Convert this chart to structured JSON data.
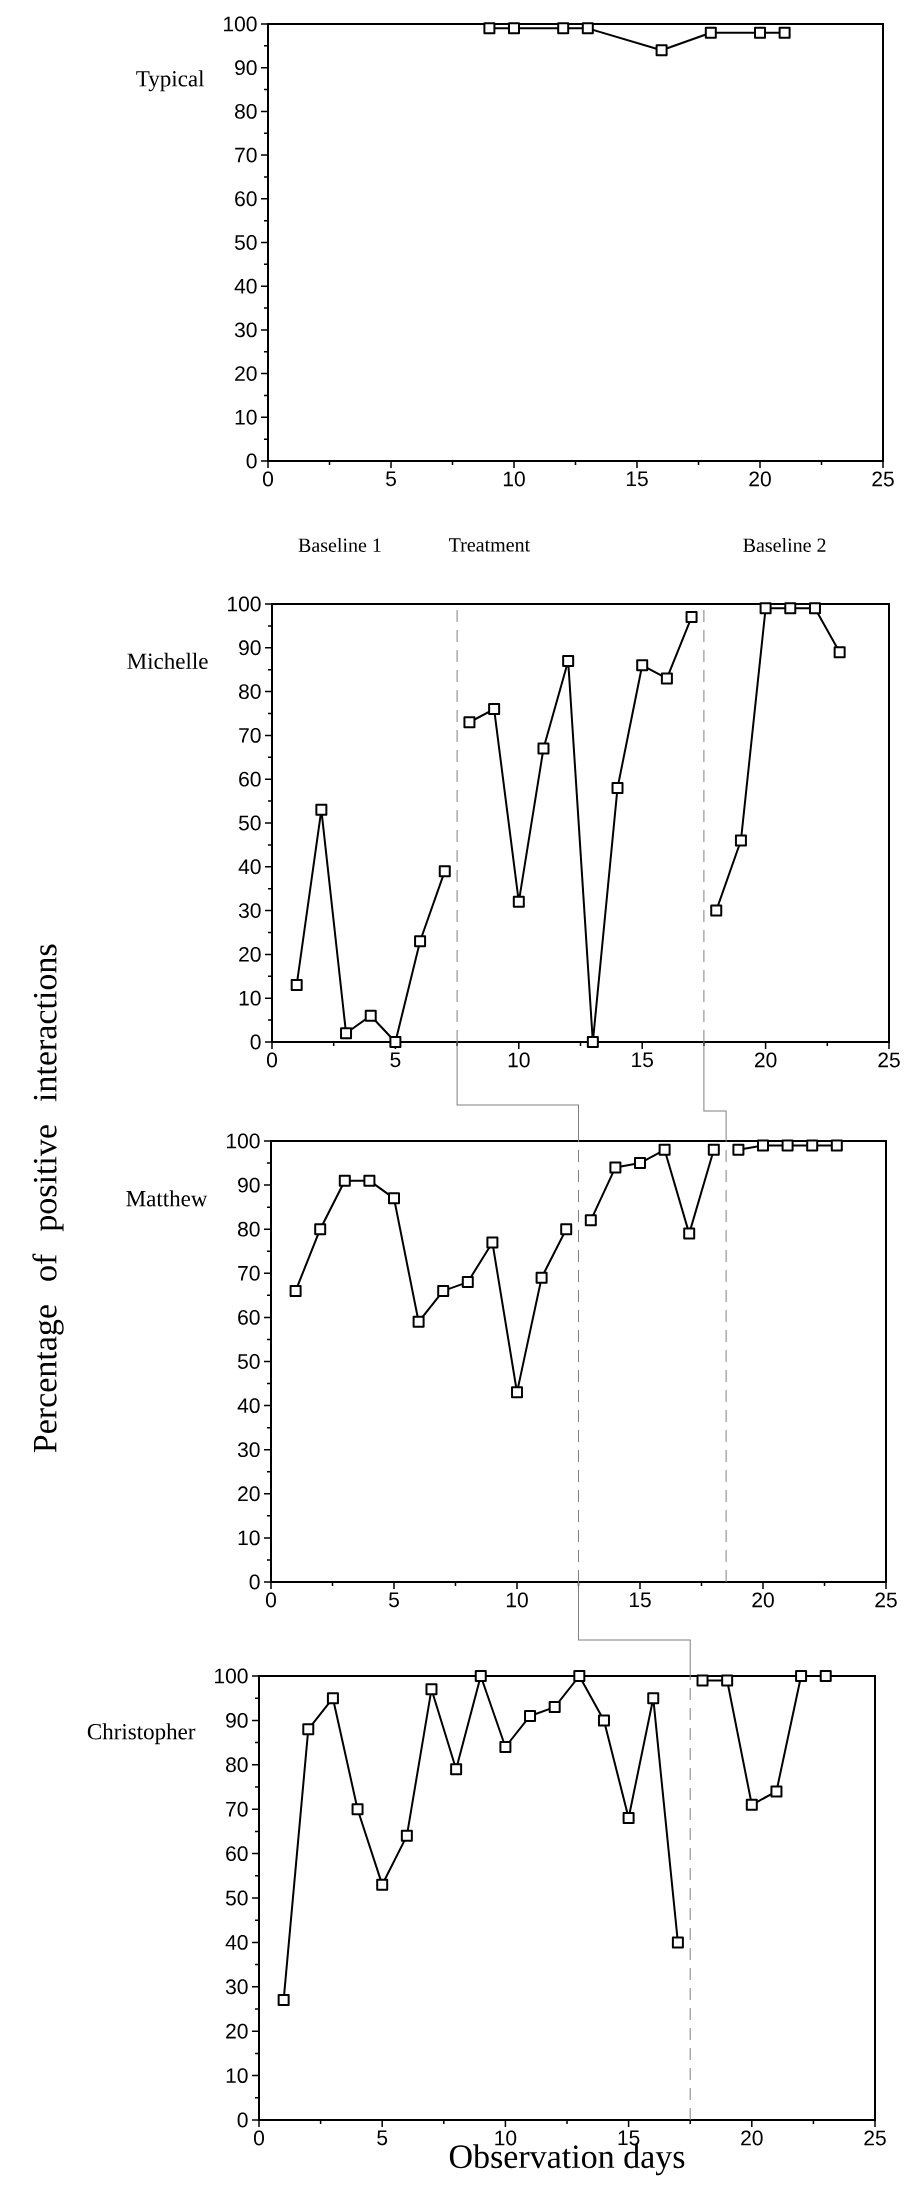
{
  "chart_data": [
    {
      "type": "line",
      "title": "Typical",
      "xlim": [
        0,
        25
      ],
      "ylim": [
        0,
        100
      ],
      "xticks": [
        0,
        5,
        10,
        15,
        20,
        25
      ],
      "yticks": [
        0,
        10,
        20,
        30,
        40,
        50,
        60,
        70,
        80,
        90,
        100
      ],
      "marker": "square",
      "line_style": "solid",
      "annotations": [
        "Baseline 1",
        "Treatment",
        "Baseline 2"
      ],
      "series": [
        {
          "color": "#000000",
          "x": [
            9,
            10,
            12,
            13,
            16,
            18,
            20,
            21
          ],
          "values": [
            99,
            99,
            99,
            99,
            94,
            98,
            98,
            98
          ]
        }
      ]
    },
    {
      "type": "line",
      "title": "Michelle",
      "xlim": [
        0,
        25
      ],
      "ylim": [
        0,
        100
      ],
      "xticks": [
        0,
        5,
        10,
        15,
        20,
        25
      ],
      "yticks": [
        0,
        10,
        20,
        30,
        40,
        50,
        60,
        70,
        80,
        90,
        100
      ],
      "marker": "square",
      "line_style": "solid",
      "ref_lines": [
        {
          "axis": "x",
          "value": 7.5,
          "color": "#808080",
          "line_style": "dashed"
        },
        {
          "axis": "x",
          "value": 17.5,
          "color": "#808080",
          "line_style": "dashed"
        }
      ],
      "series": [
        {
          "color": "#000000",
          "x": [
            1,
            2,
            3,
            4,
            5,
            6,
            7
          ],
          "values": [
            13,
            53,
            2,
            6,
            0,
            23,
            39
          ]
        },
        {
          "color": "#000000",
          "x": [
            8,
            9,
            10,
            11,
            12,
            13,
            14,
            15,
            16,
            17
          ],
          "values": [
            73,
            76,
            32,
            67,
            87,
            0,
            58,
            86,
            83,
            97
          ]
        },
        {
          "color": "#000000",
          "x": [
            18,
            19,
            20,
            21,
            22,
            23
          ],
          "values": [
            30,
            46,
            99,
            99,
            99,
            89
          ]
        }
      ]
    },
    {
      "type": "line",
      "title": "Matthew",
      "ylabel": "Percentage of positive interactions",
      "xlim": [
        0,
        25
      ],
      "ylim": [
        0,
        100
      ],
      "xticks": [
        0,
        5,
        10,
        15,
        20,
        25
      ],
      "yticks": [
        0,
        10,
        20,
        30,
        40,
        50,
        60,
        70,
        80,
        90,
        100
      ],
      "marker": "square",
      "line_style": "solid",
      "ref_lines": [
        {
          "axis": "x",
          "value": 12.5,
          "color": "#808080",
          "line_style": "dashed"
        },
        {
          "axis": "x",
          "value": 18.5,
          "color": "#808080",
          "line_style": "dashed"
        }
      ],
      "series": [
        {
          "color": "#000000",
          "x": [
            1,
            2,
            3,
            4,
            5,
            6,
            7,
            8,
            9,
            10,
            11,
            12
          ],
          "values": [
            66,
            80,
            91,
            91,
            87,
            59,
            66,
            68,
            77,
            43,
            69,
            80
          ]
        },
        {
          "color": "#000000",
          "x": [
            13,
            14,
            15,
            16,
            17,
            18
          ],
          "values": [
            82,
            94,
            95,
            98,
            79,
            98
          ]
        },
        {
          "color": "#000000",
          "x": [
            19,
            20,
            21,
            22,
            23
          ],
          "values": [
            98,
            99,
            99,
            99,
            99
          ]
        }
      ]
    },
    {
      "type": "line",
      "title": "Christopher",
      "xlabel": "Observation days",
      "xlim": [
        0,
        25
      ],
      "ylim": [
        0,
        100
      ],
      "xticks": [
        0,
        5,
        10,
        15,
        20,
        25
      ],
      "yticks": [
        0,
        10,
        20,
        30,
        40,
        50,
        60,
        70,
        80,
        90,
        100
      ],
      "marker": "square",
      "line_style": "solid",
      "ref_lines": [
        {
          "axis": "x",
          "value": 17.5,
          "color": "#808080",
          "line_style": "dashed"
        }
      ],
      "series": [
        {
          "color": "#000000",
          "x": [
            1,
            2,
            3,
            4,
            5,
            6,
            7,
            8,
            9,
            10,
            11,
            12,
            13,
            14,
            15,
            16,
            17
          ],
          "values": [
            27,
            88,
            95,
            70,
            53,
            64,
            97,
            79,
            100,
            84,
            91,
            93,
            100,
            90,
            68,
            95,
            40
          ]
        },
        {
          "color": "#000000",
          "x": [
            18,
            19,
            20,
            21,
            22,
            23
          ],
          "values": [
            99,
            99,
            71,
            74,
            100,
            100
          ]
        }
      ]
    }
  ]
}
